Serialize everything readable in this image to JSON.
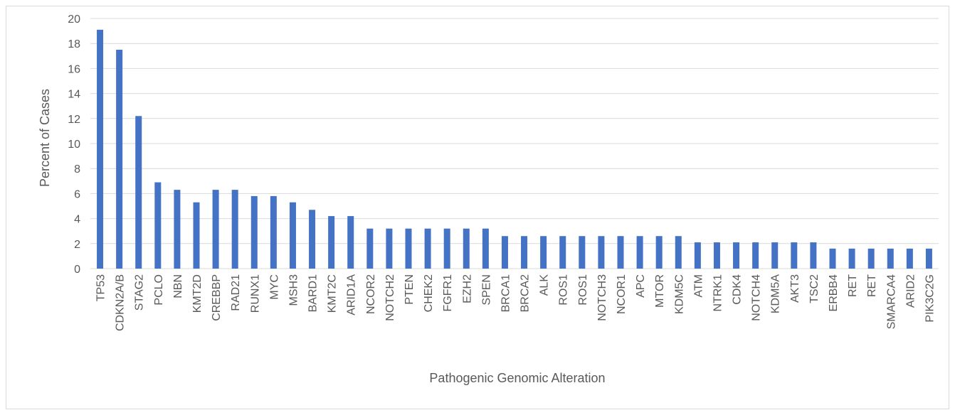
{
  "chart_data": {
    "type": "bar",
    "title": "",
    "xlabel": "Pathogenic Genomic Alteration",
    "ylabel": "Percent of Cases",
    "ylim": [
      0,
      20
    ],
    "y_ticks": [
      0,
      2,
      4,
      6,
      8,
      10,
      12,
      14,
      16,
      18,
      20
    ],
    "grid": true,
    "legend": "none",
    "bar_color": "#4472c4",
    "categories": [
      "TP53",
      "CDKN2A/B",
      "STAG2",
      "PCLO",
      "NBN",
      "KMT2D",
      "CREBBP",
      "RAD21",
      "RUNX1",
      "MYC",
      "MSH3",
      "BARD1",
      "KMT2C",
      "ARID1A",
      "NCOR2",
      "NOTCH2",
      "PTEN",
      "CHEK2",
      "FGFR1",
      "EZH2",
      "SPEN",
      "BRCA1",
      "BRCA2",
      "ALK",
      "ROS1",
      "ROS1",
      "NOTCH3",
      "NCOR1",
      "APC",
      "MTOR",
      "KDM5C",
      "ATM",
      "NTRK1",
      "CDK4",
      "NOTCH4",
      "KDM5A",
      "AKT3",
      "TSC2",
      "ERBB4",
      "RET",
      "RET",
      "SMARCA4",
      "ARID2",
      "PIK3C2G"
    ],
    "values": [
      19.1,
      17.5,
      12.2,
      6.9,
      6.3,
      5.3,
      6.3,
      6.3,
      5.8,
      5.8,
      5.3,
      4.7,
      4.2,
      4.2,
      3.2,
      3.2,
      3.2,
      3.2,
      3.2,
      3.2,
      3.2,
      2.6,
      2.6,
      2.6,
      2.6,
      2.6,
      2.6,
      2.6,
      2.6,
      2.6,
      2.6,
      2.1,
      2.1,
      2.1,
      2.1,
      2.1,
      2.1,
      2.1,
      1.6,
      1.6,
      1.6,
      1.6,
      1.6,
      1.6
    ]
  }
}
